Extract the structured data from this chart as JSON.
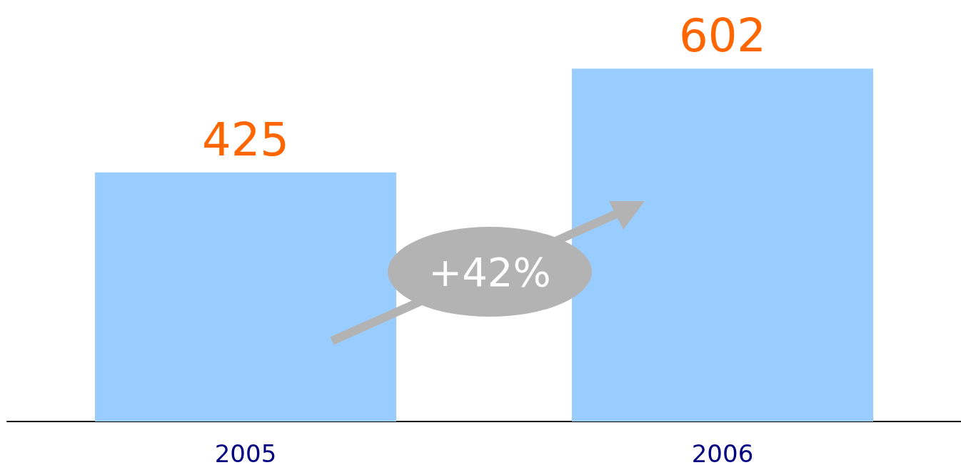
{
  "chart_data": {
    "type": "bar",
    "categories": [
      "2005",
      "2006"
    ],
    "values": [
      425,
      602
    ],
    "color": "#99ccff",
    "data_labels": true,
    "annotations": [
      "+42%"
    ]
  }
}
